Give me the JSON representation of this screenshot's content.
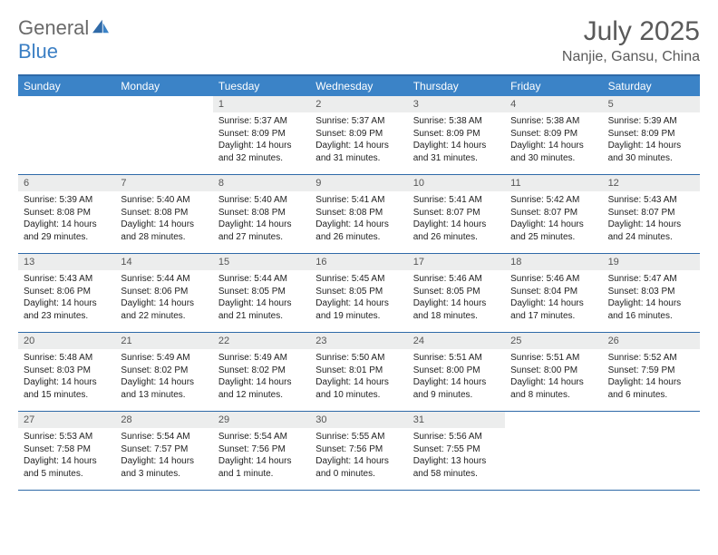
{
  "brand": {
    "part1": "General",
    "part2": "Blue"
  },
  "title": "July 2025",
  "location": "Nanjie, Gansu, China",
  "header_bg": "#3b83c7",
  "border_color": "#2f6aa8",
  "daynum_bg": "#eceded",
  "weekdays": [
    "Sunday",
    "Monday",
    "Tuesday",
    "Wednesday",
    "Thursday",
    "Friday",
    "Saturday"
  ],
  "weeks": [
    [
      null,
      null,
      {
        "n": "1",
        "sr": "5:37 AM",
        "ss": "8:09 PM",
        "dl": "14 hours and 32 minutes."
      },
      {
        "n": "2",
        "sr": "5:37 AM",
        "ss": "8:09 PM",
        "dl": "14 hours and 31 minutes."
      },
      {
        "n": "3",
        "sr": "5:38 AM",
        "ss": "8:09 PM",
        "dl": "14 hours and 31 minutes."
      },
      {
        "n": "4",
        "sr": "5:38 AM",
        "ss": "8:09 PM",
        "dl": "14 hours and 30 minutes."
      },
      {
        "n": "5",
        "sr": "5:39 AM",
        "ss": "8:09 PM",
        "dl": "14 hours and 30 minutes."
      }
    ],
    [
      {
        "n": "6",
        "sr": "5:39 AM",
        "ss": "8:08 PM",
        "dl": "14 hours and 29 minutes."
      },
      {
        "n": "7",
        "sr": "5:40 AM",
        "ss": "8:08 PM",
        "dl": "14 hours and 28 minutes."
      },
      {
        "n": "8",
        "sr": "5:40 AM",
        "ss": "8:08 PM",
        "dl": "14 hours and 27 minutes."
      },
      {
        "n": "9",
        "sr": "5:41 AM",
        "ss": "8:08 PM",
        "dl": "14 hours and 26 minutes."
      },
      {
        "n": "10",
        "sr": "5:41 AM",
        "ss": "8:07 PM",
        "dl": "14 hours and 26 minutes."
      },
      {
        "n": "11",
        "sr": "5:42 AM",
        "ss": "8:07 PM",
        "dl": "14 hours and 25 minutes."
      },
      {
        "n": "12",
        "sr": "5:43 AM",
        "ss": "8:07 PM",
        "dl": "14 hours and 24 minutes."
      }
    ],
    [
      {
        "n": "13",
        "sr": "5:43 AM",
        "ss": "8:06 PM",
        "dl": "14 hours and 23 minutes."
      },
      {
        "n": "14",
        "sr": "5:44 AM",
        "ss": "8:06 PM",
        "dl": "14 hours and 22 minutes."
      },
      {
        "n": "15",
        "sr": "5:44 AM",
        "ss": "8:05 PM",
        "dl": "14 hours and 21 minutes."
      },
      {
        "n": "16",
        "sr": "5:45 AM",
        "ss": "8:05 PM",
        "dl": "14 hours and 19 minutes."
      },
      {
        "n": "17",
        "sr": "5:46 AM",
        "ss": "8:05 PM",
        "dl": "14 hours and 18 minutes."
      },
      {
        "n": "18",
        "sr": "5:46 AM",
        "ss": "8:04 PM",
        "dl": "14 hours and 17 minutes."
      },
      {
        "n": "19",
        "sr": "5:47 AM",
        "ss": "8:03 PM",
        "dl": "14 hours and 16 minutes."
      }
    ],
    [
      {
        "n": "20",
        "sr": "5:48 AM",
        "ss": "8:03 PM",
        "dl": "14 hours and 15 minutes."
      },
      {
        "n": "21",
        "sr": "5:49 AM",
        "ss": "8:02 PM",
        "dl": "14 hours and 13 minutes."
      },
      {
        "n": "22",
        "sr": "5:49 AM",
        "ss": "8:02 PM",
        "dl": "14 hours and 12 minutes."
      },
      {
        "n": "23",
        "sr": "5:50 AM",
        "ss": "8:01 PM",
        "dl": "14 hours and 10 minutes."
      },
      {
        "n": "24",
        "sr": "5:51 AM",
        "ss": "8:00 PM",
        "dl": "14 hours and 9 minutes."
      },
      {
        "n": "25",
        "sr": "5:51 AM",
        "ss": "8:00 PM",
        "dl": "14 hours and 8 minutes."
      },
      {
        "n": "26",
        "sr": "5:52 AM",
        "ss": "7:59 PM",
        "dl": "14 hours and 6 minutes."
      }
    ],
    [
      {
        "n": "27",
        "sr": "5:53 AM",
        "ss": "7:58 PM",
        "dl": "14 hours and 5 minutes."
      },
      {
        "n": "28",
        "sr": "5:54 AM",
        "ss": "7:57 PM",
        "dl": "14 hours and 3 minutes."
      },
      {
        "n": "29",
        "sr": "5:54 AM",
        "ss": "7:56 PM",
        "dl": "14 hours and 1 minute."
      },
      {
        "n": "30",
        "sr": "5:55 AM",
        "ss": "7:56 PM",
        "dl": "14 hours and 0 minutes."
      },
      {
        "n": "31",
        "sr": "5:56 AM",
        "ss": "7:55 PM",
        "dl": "13 hours and 58 minutes."
      },
      null,
      null
    ]
  ],
  "labels": {
    "sunrise": "Sunrise:",
    "sunset": "Sunset:",
    "daylight": "Daylight:"
  }
}
